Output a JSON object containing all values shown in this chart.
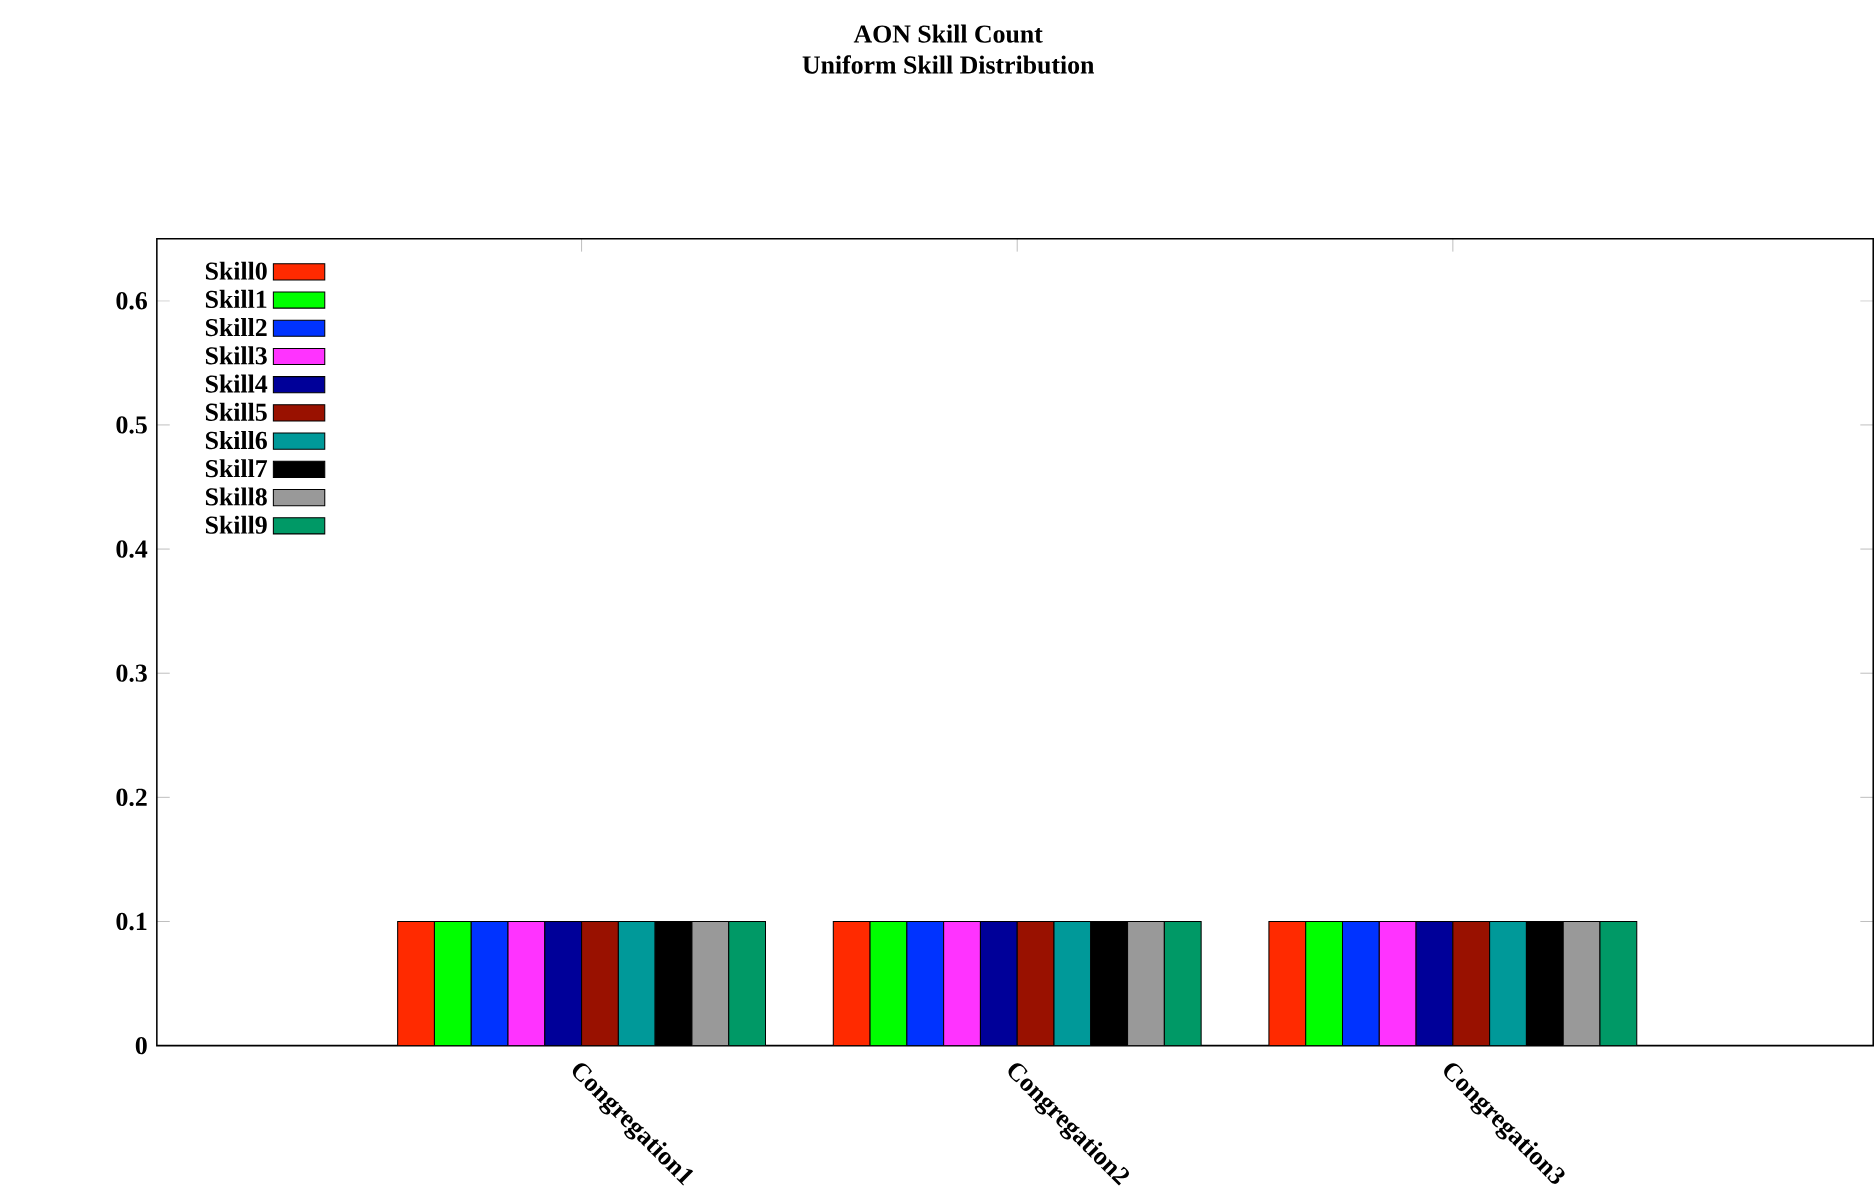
{
  "chart_data": {
    "type": "bar",
    "title": "AON Skill Count",
    "subtitle": "Uniform Skill Distribution",
    "categories": [
      "Congregation1",
      "Congregation2",
      "Congregation3"
    ],
    "series": [
      {
        "name": "Skill0",
        "color": "#ff2a00",
        "values": [
          0.1,
          0.1,
          0.1
        ]
      },
      {
        "name": "Skill1",
        "color": "#00ff00",
        "values": [
          0.1,
          0.1,
          0.1
        ]
      },
      {
        "name": "Skill2",
        "color": "#0033ff",
        "values": [
          0.1,
          0.1,
          0.1
        ]
      },
      {
        "name": "Skill3",
        "color": "#ff33ff",
        "values": [
          0.1,
          0.1,
          0.1
        ]
      },
      {
        "name": "Skill4",
        "color": "#000099",
        "values": [
          0.1,
          0.1,
          0.1
        ]
      },
      {
        "name": "Skill5",
        "color": "#991100",
        "values": [
          0.1,
          0.1,
          0.1
        ]
      },
      {
        "name": "Skill6",
        "color": "#009999",
        "values": [
          0.1,
          0.1,
          0.1
        ]
      },
      {
        "name": "Skill7",
        "color": "#000000",
        "values": [
          0.1,
          0.1,
          0.1
        ]
      },
      {
        "name": "Skill8",
        "color": "#999999",
        "values": [
          0.1,
          0.1,
          0.1
        ]
      },
      {
        "name": "Skill9",
        "color": "#009966",
        "values": [
          0.1,
          0.1,
          0.1
        ]
      }
    ],
    "ylim": [
      0,
      0.65
    ],
    "yticks": [
      0,
      0.1,
      0.2,
      0.3,
      0.4,
      0.5,
      0.6
    ],
    "legend": "top left",
    "grid": false
  }
}
